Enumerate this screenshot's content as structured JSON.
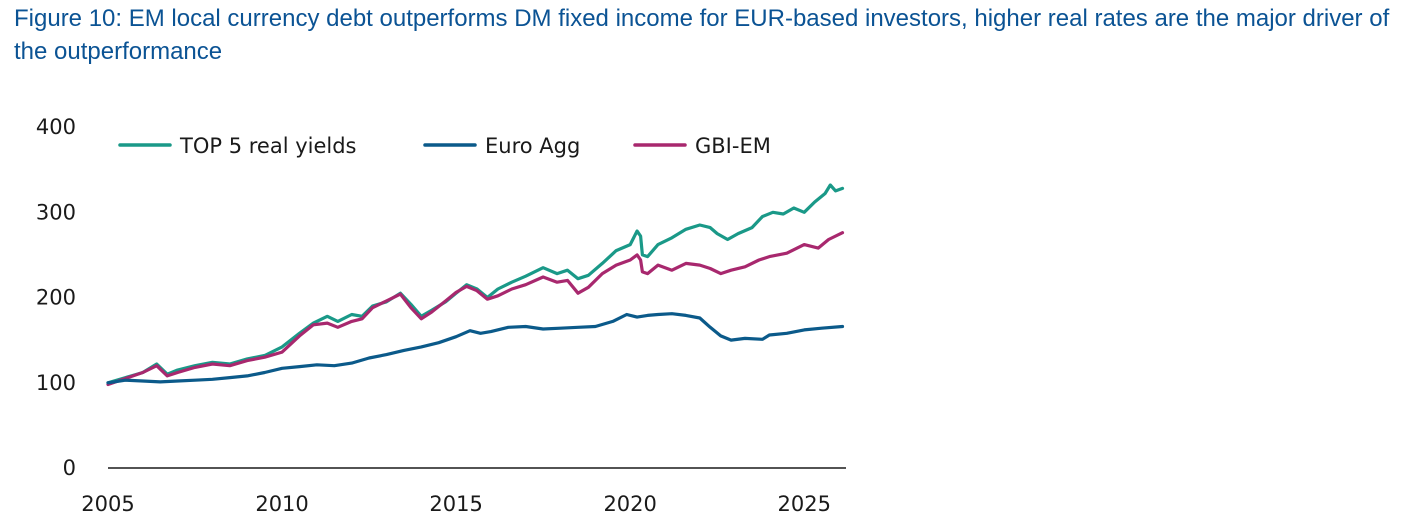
{
  "title": "Figure 10: EM local currency debt outperforms DM fixed income for EUR-based investors, higher real rates are the major driver of the outperformance",
  "chart_data": {
    "type": "line",
    "title": "Figure 10: EM local currency debt outperforms DM fixed income for EUR-based investors, higher real rates are the major driver of the outperformance",
    "xlabel": "",
    "ylabel": "",
    "xlim": [
      2005,
      2026.2
    ],
    "ylim": [
      0,
      400
    ],
    "x_ticks": [
      2005,
      2010,
      2015,
      2020,
      2025
    ],
    "y_ticks": [
      0,
      100,
      200,
      300,
      400
    ],
    "grid": false,
    "legend_position": "top",
    "series": [
      {
        "name": "TOP 5 real yields",
        "color": "#1a9988",
        "points": [
          [
            2005.0,
            100
          ],
          [
            2005.5,
            106
          ],
          [
            2006.0,
            112
          ],
          [
            2006.4,
            122
          ],
          [
            2006.7,
            110
          ],
          [
            2007.0,
            115
          ],
          [
            2007.5,
            120
          ],
          [
            2008.0,
            124
          ],
          [
            2008.5,
            122
          ],
          [
            2009.0,
            128
          ],
          [
            2009.5,
            132
          ],
          [
            2010.0,
            142
          ],
          [
            2010.5,
            158
          ],
          [
            2010.9,
            170
          ],
          [
            2011.3,
            178
          ],
          [
            2011.6,
            172
          ],
          [
            2012.0,
            180
          ],
          [
            2012.3,
            178
          ],
          [
            2012.6,
            190
          ],
          [
            2013.0,
            195
          ],
          [
            2013.4,
            205
          ],
          [
            2013.7,
            192
          ],
          [
            2014.0,
            178
          ],
          [
            2014.3,
            185
          ],
          [
            2014.7,
            195
          ],
          [
            2015.0,
            205
          ],
          [
            2015.3,
            215
          ],
          [
            2015.6,
            210
          ],
          [
            2015.9,
            200
          ],
          [
            2016.2,
            210
          ],
          [
            2016.6,
            218
          ],
          [
            2017.0,
            225
          ],
          [
            2017.5,
            235
          ],
          [
            2017.9,
            228
          ],
          [
            2018.2,
            232
          ],
          [
            2018.5,
            222
          ],
          [
            2018.8,
            226
          ],
          [
            2019.2,
            240
          ],
          [
            2019.6,
            255
          ],
          [
            2020.0,
            262
          ],
          [
            2020.2,
            278
          ],
          [
            2020.3,
            272
          ],
          [
            2020.35,
            250
          ],
          [
            2020.5,
            248
          ],
          [
            2020.8,
            262
          ],
          [
            2021.2,
            270
          ],
          [
            2021.6,
            280
          ],
          [
            2022.0,
            285
          ],
          [
            2022.3,
            282
          ],
          [
            2022.5,
            275
          ],
          [
            2022.8,
            268
          ],
          [
            2023.1,
            275
          ],
          [
            2023.5,
            282
          ],
          [
            2023.8,
            295
          ],
          [
            2024.1,
            300
          ],
          [
            2024.4,
            298
          ],
          [
            2024.7,
            305
          ],
          [
            2025.0,
            300
          ],
          [
            2025.3,
            312
          ],
          [
            2025.6,
            322
          ],
          [
            2025.75,
            332
          ],
          [
            2025.9,
            325
          ],
          [
            2026.1,
            328
          ]
        ]
      },
      {
        "name": "Euro Agg",
        "color": "#0b5a8a",
        "points": [
          [
            2005.0,
            100
          ],
          [
            2005.5,
            103
          ],
          [
            2006.0,
            102
          ],
          [
            2006.5,
            101
          ],
          [
            2007.0,
            102
          ],
          [
            2007.5,
            103
          ],
          [
            2008.0,
            104
          ],
          [
            2008.5,
            106
          ],
          [
            2009.0,
            108
          ],
          [
            2009.5,
            112
          ],
          [
            2010.0,
            117
          ],
          [
            2010.5,
            119
          ],
          [
            2011.0,
            121
          ],
          [
            2011.5,
            120
          ],
          [
            2012.0,
            123
          ],
          [
            2012.5,
            129
          ],
          [
            2013.0,
            133
          ],
          [
            2013.5,
            138
          ],
          [
            2014.0,
            142
          ],
          [
            2014.5,
            147
          ],
          [
            2015.0,
            154
          ],
          [
            2015.4,
            161
          ],
          [
            2015.7,
            158
          ],
          [
            2016.0,
            160
          ],
          [
            2016.5,
            165
          ],
          [
            2017.0,
            166
          ],
          [
            2017.5,
            163
          ],
          [
            2018.0,
            164
          ],
          [
            2018.5,
            165
          ],
          [
            2019.0,
            166
          ],
          [
            2019.5,
            172
          ],
          [
            2019.9,
            180
          ],
          [
            2020.2,
            177
          ],
          [
            2020.5,
            179
          ],
          [
            2020.8,
            180
          ],
          [
            2021.2,
            181
          ],
          [
            2021.6,
            179
          ],
          [
            2022.0,
            176
          ],
          [
            2022.3,
            165
          ],
          [
            2022.6,
            155
          ],
          [
            2022.9,
            150
          ],
          [
            2023.3,
            152
          ],
          [
            2023.8,
            151
          ],
          [
            2024.0,
            156
          ],
          [
            2024.5,
            158
          ],
          [
            2025.0,
            162
          ],
          [
            2025.5,
            164
          ],
          [
            2026.1,
            166
          ]
        ]
      },
      {
        "name": "GBI-EM",
        "color": "#a8286e",
        "points": [
          [
            2005.0,
            98
          ],
          [
            2005.5,
            105
          ],
          [
            2006.0,
            112
          ],
          [
            2006.4,
            120
          ],
          [
            2006.7,
            108
          ],
          [
            2007.0,
            112
          ],
          [
            2007.5,
            118
          ],
          [
            2008.0,
            122
          ],
          [
            2008.5,
            120
          ],
          [
            2009.0,
            126
          ],
          [
            2009.5,
            130
          ],
          [
            2010.0,
            136
          ],
          [
            2010.5,
            155
          ],
          [
            2010.9,
            168
          ],
          [
            2011.3,
            170
          ],
          [
            2011.6,
            165
          ],
          [
            2012.0,
            172
          ],
          [
            2012.3,
            175
          ],
          [
            2012.6,
            188
          ],
          [
            2013.0,
            196
          ],
          [
            2013.4,
            204
          ],
          [
            2013.7,
            188
          ],
          [
            2014.0,
            175
          ],
          [
            2014.3,
            183
          ],
          [
            2014.7,
            196
          ],
          [
            2015.0,
            206
          ],
          [
            2015.3,
            213
          ],
          [
            2015.6,
            208
          ],
          [
            2015.9,
            198
          ],
          [
            2016.2,
            202
          ],
          [
            2016.6,
            210
          ],
          [
            2017.0,
            215
          ],
          [
            2017.5,
            224
          ],
          [
            2017.9,
            218
          ],
          [
            2018.2,
            220
          ],
          [
            2018.5,
            205
          ],
          [
            2018.8,
            212
          ],
          [
            2019.2,
            228
          ],
          [
            2019.6,
            238
          ],
          [
            2020.0,
            244
          ],
          [
            2020.2,
            250
          ],
          [
            2020.3,
            244
          ],
          [
            2020.35,
            230
          ],
          [
            2020.5,
            228
          ],
          [
            2020.8,
            238
          ],
          [
            2021.2,
            232
          ],
          [
            2021.6,
            240
          ],
          [
            2022.0,
            238
          ],
          [
            2022.3,
            234
          ],
          [
            2022.6,
            228
          ],
          [
            2022.9,
            232
          ],
          [
            2023.3,
            236
          ],
          [
            2023.7,
            244
          ],
          [
            2024.0,
            248
          ],
          [
            2024.5,
            252
          ],
          [
            2025.0,
            262
          ],
          [
            2025.4,
            258
          ],
          [
            2025.7,
            268
          ],
          [
            2026.1,
            276
          ]
        ]
      }
    ]
  }
}
